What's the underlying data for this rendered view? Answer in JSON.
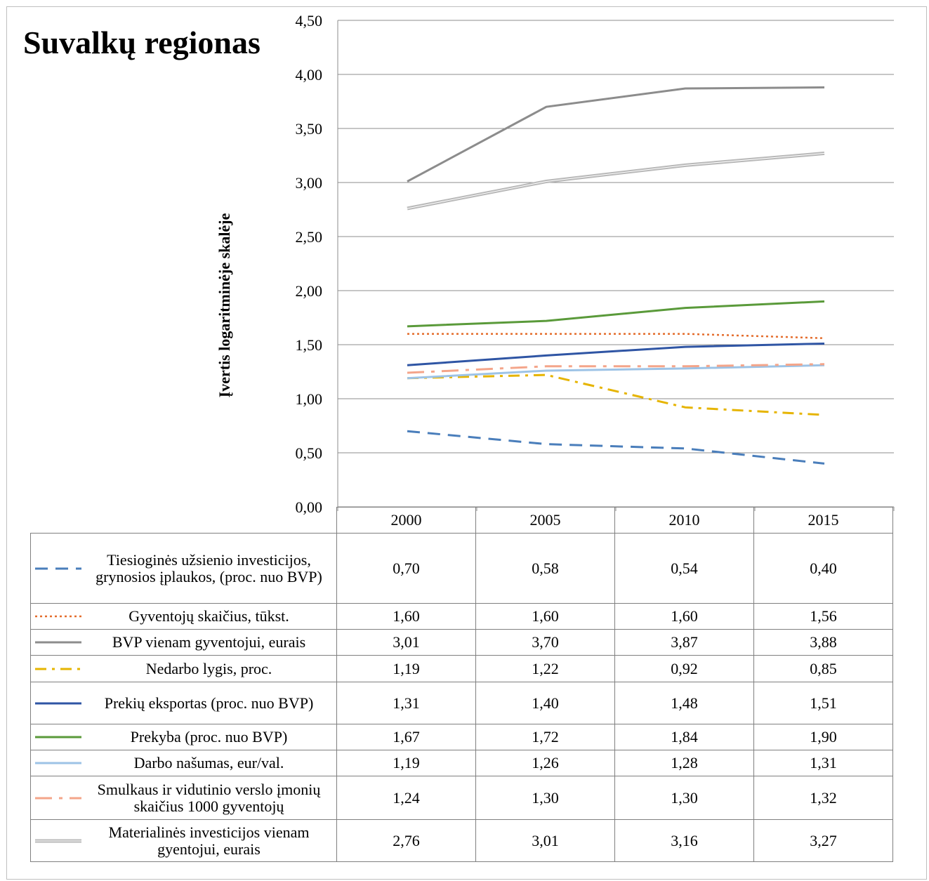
{
  "title": "Suvalkų regionas",
  "chart_data": {
    "type": "line",
    "title": "Suvalkų regionas",
    "xlabel": "",
    "ylabel": "Įvertis logaritminėje skalėje",
    "categories": [
      "2000",
      "2005",
      "2010",
      "2015"
    ],
    "ylim": [
      0,
      4.5
    ],
    "yticks": [
      "0,00",
      "0,50",
      "1,00",
      "1,50",
      "2,00",
      "2,50",
      "3,00",
      "3,50",
      "4,00",
      "4,50"
    ],
    "grid": true,
    "legend": "data table below chart",
    "series": [
      {
        "name": "Tiesioginės užsienio investicijos, grynosios įplaukos, (proc. nuo BVP)",
        "values": [
          0.7,
          0.58,
          0.54,
          0.4
        ],
        "labels": [
          "0,70",
          "0,58",
          "0,54",
          "0,40"
        ],
        "color": "#4a7ebb",
        "style": "dash"
      },
      {
        "name": "Gyventojų skaičius, tūkst.",
        "values": [
          1.6,
          1.6,
          1.6,
          1.56
        ],
        "labels": [
          "1,60",
          "1,60",
          "1,60",
          "1,56"
        ],
        "color": "#e46c2b",
        "style": "dot"
      },
      {
        "name": "BVP vienam gyventojui, eurais",
        "values": [
          3.01,
          3.7,
          3.87,
          3.88
        ],
        "labels": [
          "3,01",
          "3,70",
          "3,87",
          "3,88"
        ],
        "color": "#8c8c8c",
        "style": "solid"
      },
      {
        "name": "Nedarbo lygis, proc.",
        "values": [
          1.19,
          1.22,
          0.92,
          0.85
        ],
        "labels": [
          "1,19",
          "1,22",
          "0,92",
          "0,85"
        ],
        "color": "#e6b400",
        "style": "dashdot"
      },
      {
        "name": "Prekių eksportas (proc. nuo BVP)",
        "values": [
          1.31,
          1.4,
          1.48,
          1.51
        ],
        "labels": [
          "1,31",
          "1,40",
          "1,48",
          "1,51"
        ],
        "color": "#2f55a4",
        "style": "solid"
      },
      {
        "name": "Prekyba (proc. nuo BVP)",
        "values": [
          1.67,
          1.72,
          1.84,
          1.9
        ],
        "labels": [
          "1,67",
          "1,72",
          "1,84",
          "1,90"
        ],
        "color": "#5a9a3a",
        "style": "solid"
      },
      {
        "name": "Darbo našumas, eur/val.",
        "values": [
          1.19,
          1.26,
          1.28,
          1.31
        ],
        "labels": [
          "1,19",
          "1,26",
          "1,28",
          "1,31"
        ],
        "color": "#9dc3e6",
        "style": "solid"
      },
      {
        "name": "Smulkaus ir vidutinio verslo įmonių skaičius 1000 gyventojų",
        "values": [
          1.24,
          1.3,
          1.3,
          1.32
        ],
        "labels": [
          "1,24",
          "1,30",
          "1,30",
          "1,32"
        ],
        "color": "#f4a58a",
        "style": "longdashdot"
      },
      {
        "name": "Materialinės investicijos vienam gyentojui, eurais",
        "values": [
          2.76,
          3.01,
          3.16,
          3.27
        ],
        "labels": [
          "2,76",
          "3,01",
          "3,16",
          "3,27"
        ],
        "color": "#b8b8b8",
        "style": "double"
      }
    ]
  }
}
